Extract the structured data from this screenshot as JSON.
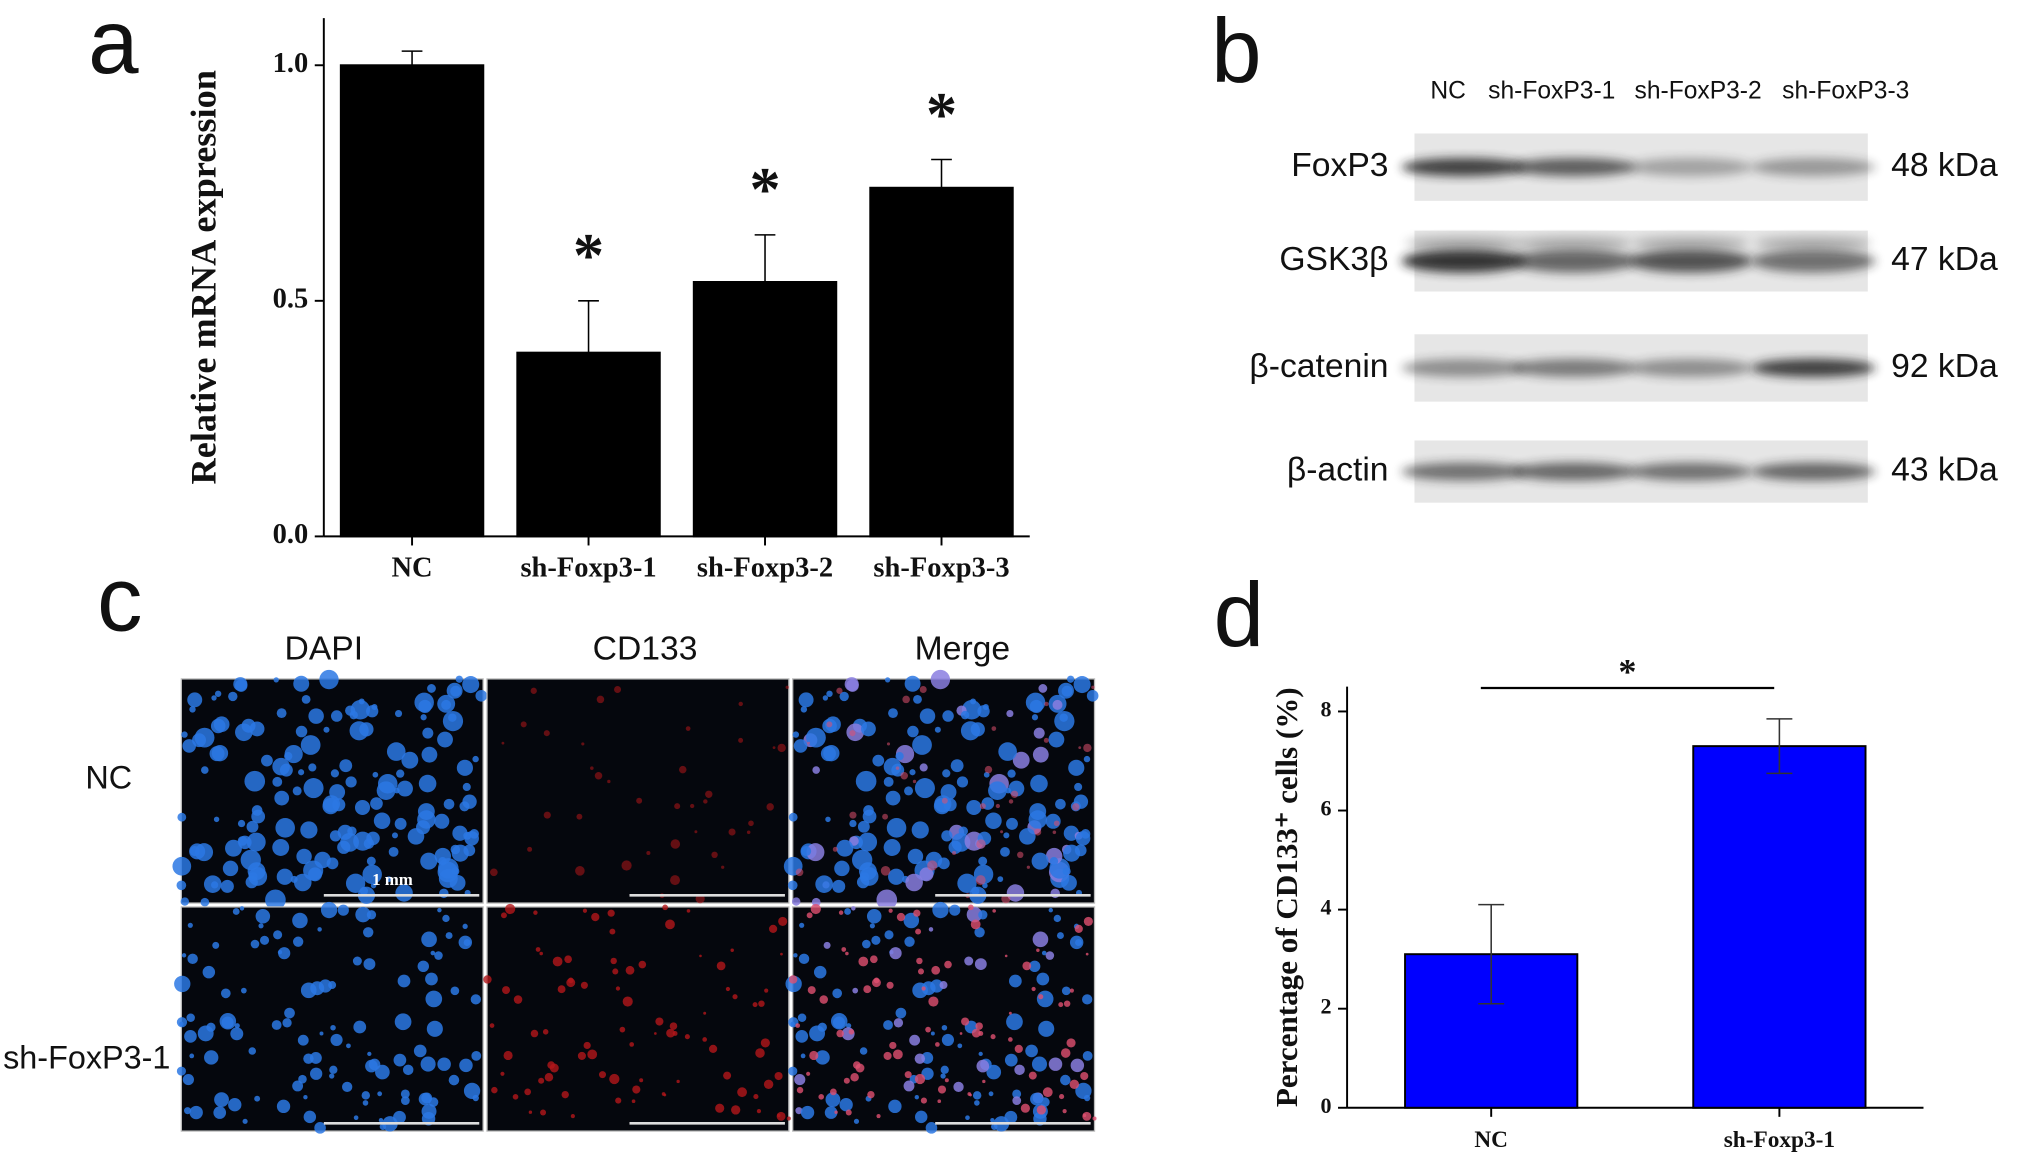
{
  "chart_data": [
    {
      "type": "bar",
      "panel": "a",
      "ylabel": "Relative mRNA expression",
      "categories": [
        "NC",
        "sh-Foxp3-1",
        "sh-Foxp3-2",
        "sh-Foxp3-3"
      ],
      "values": [
        1.0,
        0.39,
        0.54,
        0.74
      ],
      "errors": [
        0.03,
        0.11,
        0.1,
        0.06
      ],
      "significance_labels": [
        null,
        "*",
        "*",
        "*"
      ],
      "color": "#000000",
      "ylim": [
        0,
        1.1
      ],
      "yticks": [
        {
          "value": 0,
          "label": "0.0"
        },
        {
          "value": 0.5,
          "label": "0.5"
        },
        {
          "value": 1,
          "label": "1.0"
        }
      ]
    },
    {
      "type": "bar",
      "panel": "d",
      "ylabel": "Percentage of CD133⁺ cells (%)",
      "categories": [
        "NC",
        "sh-Foxp3-1"
      ],
      "values": [
        3.1,
        7.3
      ],
      "errors": [
        1.0,
        0.55
      ],
      "significance_label": "*",
      "color": "#0000ff",
      "ylim": [
        0,
        8.5
      ],
      "yticks": [
        0,
        2,
        4,
        6,
        8
      ]
    }
  ],
  "western_blot": {
    "panel": "b",
    "lanes": [
      "NC",
      "sh-FoxP3-1",
      "sh-FoxP3-2",
      "sh-FoxP3-3"
    ],
    "proteins": [
      {
        "name": "FoxP3",
        "size": "48 kDa"
      },
      {
        "name": "GSK3β",
        "size": "47 kDa"
      },
      {
        "name": "β-catenin",
        "size": "92 kDa"
      },
      {
        "name": "β-actin",
        "size": "43 kDa"
      }
    ]
  },
  "microscopy": {
    "panel": "c",
    "columns": [
      "DAPI",
      "CD133",
      "Merge"
    ],
    "rows": [
      "NC",
      "sh-FoxP3-1"
    ],
    "scale_bar": "1 mm"
  }
}
